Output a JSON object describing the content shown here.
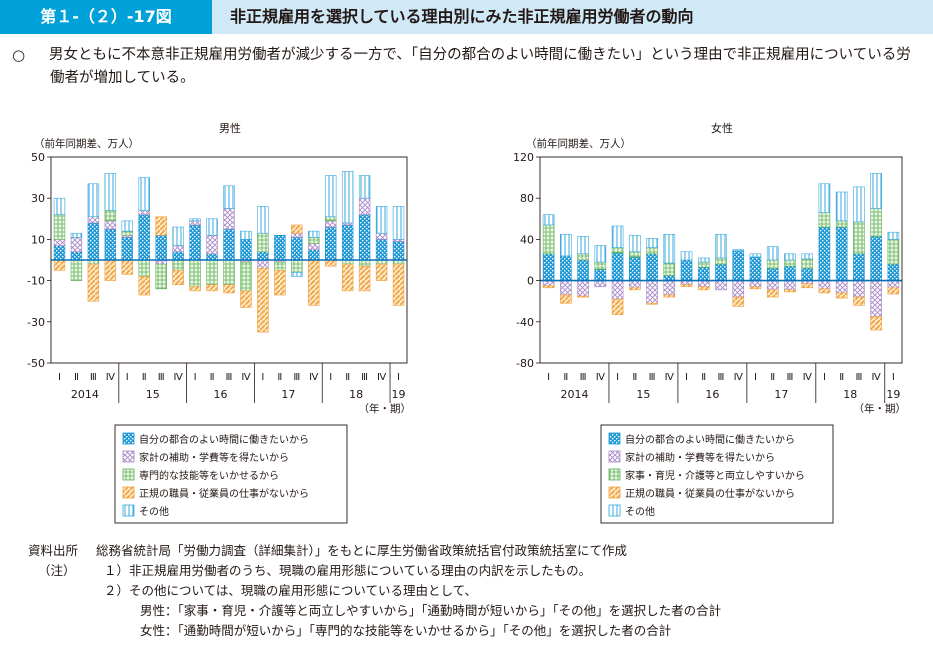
{
  "header": {
    "figure_number": "第１-（２）-17図",
    "title": "非正規雇用を選択している理由別にみた非正規雇用労働者の動向"
  },
  "summary": {
    "bullet": "○",
    "text": "男女ともに不本意非正規雇用労働者が減少する一方で、「自分の都合のよい時間に働きたい」という理由で非正規雇用についている労働者が増加している。"
  },
  "chart_data": [
    {
      "type": "bar",
      "stacked": true,
      "title": "男性",
      "ylabel": "（前年同期差、万人）",
      "xlabel": "（年・期）",
      "ylim": [
        -50,
        50
      ],
      "yticks": [
        50,
        30,
        10,
        -10,
        -30,
        -50
      ],
      "quarter_labels": [
        "Ⅰ",
        "Ⅱ",
        "Ⅲ",
        "Ⅳ",
        "Ⅰ",
        "Ⅱ",
        "Ⅲ",
        "Ⅳ",
        "Ⅰ",
        "Ⅱ",
        "Ⅲ",
        "Ⅳ",
        "Ⅰ",
        "Ⅱ",
        "Ⅲ",
        "Ⅳ",
        "Ⅰ",
        "Ⅱ",
        "Ⅲ",
        "Ⅳ",
        "Ⅰ"
      ],
      "year_labels": [
        "2014",
        "15",
        "16",
        "17",
        "18",
        "19"
      ],
      "series": [
        {
          "name": "自分の都合のよい時間に働きたいから",
          "color": "#1f9ad6",
          "values": [
            7,
            4,
            18,
            15,
            11,
            22,
            12,
            4,
            17,
            3,
            15,
            10,
            4,
            12,
            11,
            5,
            16,
            17,
            22,
            10,
            9
          ]
        },
        {
          "name": "家計の補助・学費等を得たいから",
          "color": "#a889c7",
          "values": [
            3,
            7,
            3,
            4,
            1,
            2,
            -2,
            3,
            2,
            9,
            10,
            -1,
            -4,
            -1,
            2,
            3,
            3,
            1,
            8,
            3,
            1
          ]
        },
        {
          "name": "専門的な技能等をいかせるから",
          "color": "#5fb05a",
          "values": [
            12,
            -10,
            -2,
            5,
            2,
            -8,
            -12,
            -5,
            -13,
            -12,
            -12,
            -14,
            9,
            -4,
            -6,
            3,
            2,
            -2,
            -3,
            -2,
            -2
          ]
        },
        {
          "name": "正規の職員・従業員の仕事がないから",
          "color": "#f0a03c",
          "values": [
            -5,
            0,
            -18,
            -10,
            -7,
            -9,
            9,
            -7,
            -2,
            -3,
            -4,
            -8,
            -31,
            -12,
            4,
            -22,
            -3,
            -13,
            -12,
            -8,
            -20
          ]
        },
        {
          "name": "その他",
          "color": "#38a8e0",
          "values": [
            8,
            2,
            16,
            18,
            5,
            16,
            0,
            9,
            1,
            8,
            11,
            4,
            13,
            0,
            -2,
            3,
            20,
            25,
            11,
            13,
            16
          ]
        }
      ]
    },
    {
      "type": "bar",
      "stacked": true,
      "title": "女性",
      "ylabel": "（前年同期差、万人）",
      "xlabel": "（年・期）",
      "ylim": [
        -80,
        120
      ],
      "yticks": [
        120,
        80,
        40,
        0,
        -40,
        -80
      ],
      "quarter_labels": [
        "Ⅰ",
        "Ⅱ",
        "Ⅲ",
        "Ⅳ",
        "Ⅰ",
        "Ⅱ",
        "Ⅲ",
        "Ⅳ",
        "Ⅰ",
        "Ⅱ",
        "Ⅲ",
        "Ⅳ",
        "Ⅰ",
        "Ⅱ",
        "Ⅲ",
        "Ⅳ",
        "Ⅰ",
        "Ⅱ",
        "Ⅲ",
        "Ⅳ",
        "Ⅰ"
      ],
      "year_labels": [
        "2014",
        "15",
        "16",
        "17",
        "18",
        "19"
      ],
      "series": [
        {
          "name": "自分の都合のよい時間に働きたいから",
          "color": "#1f9ad6",
          "values": [
            26,
            24,
            20,
            11,
            27,
            23,
            26,
            5,
            20,
            13,
            16,
            29,
            23,
            12,
            14,
            12,
            52,
            52,
            26,
            43,
            16
          ]
        },
        {
          "name": "家計の補助・学費等を得たいから",
          "color": "#a889c7",
          "values": [
            -5,
            -14,
            -15,
            -6,
            -18,
            -7,
            -22,
            -14,
            -4,
            -6,
            -9,
            -16,
            -6,
            -9,
            -9,
            -3,
            -8,
            -12,
            -16,
            -35,
            -7
          ]
        },
        {
          "name": "家事・育児・介護等と両立しやすいから",
          "color": "#5fb05a",
          "values": [
            28,
            0,
            6,
            7,
            5,
            5,
            6,
            12,
            0,
            5,
            6,
            0,
            0,
            8,
            6,
            9,
            14,
            6,
            31,
            27,
            24
          ]
        },
        {
          "name": "正規の職員・従業員の仕事がないから",
          "color": "#f0a03c",
          "values": [
            -2,
            -8,
            -1,
            0,
            -15,
            -2,
            -1,
            -2,
            -2,
            -3,
            0,
            -9,
            -2,
            -7,
            -2,
            -4,
            -4,
            -5,
            -8,
            -13,
            -6
          ]
        },
        {
          "name": "その他",
          "color": "#38a8e0",
          "values": [
            10,
            21,
            17,
            16,
            21,
            16,
            9,
            28,
            8,
            4,
            23,
            1,
            3,
            13,
            6,
            5,
            28,
            28,
            34,
            34,
            7
          ]
        }
      ]
    }
  ],
  "source": {
    "label": "資料出所",
    "text": "総務省統計局「労働力調査（詳細集計）」をもとに厚生労働省政策統括官付政策統括室にて作成"
  },
  "notes": {
    "label": "（注）",
    "items": [
      "１）非正規雇用労働者のうち、現職の雇用形態についている理由の内訳を示したもの。",
      "２）その他については、現職の雇用形態についている理由として、",
      "男性：「家事・育児・介護等と両立しやすいから」「通勤時間が短いから」「その他」を選択した者の合計",
      "女性：「通勤時間が短いから」「専門的な技能等をいかせるから」「その他」を選択した者の合計"
    ]
  }
}
